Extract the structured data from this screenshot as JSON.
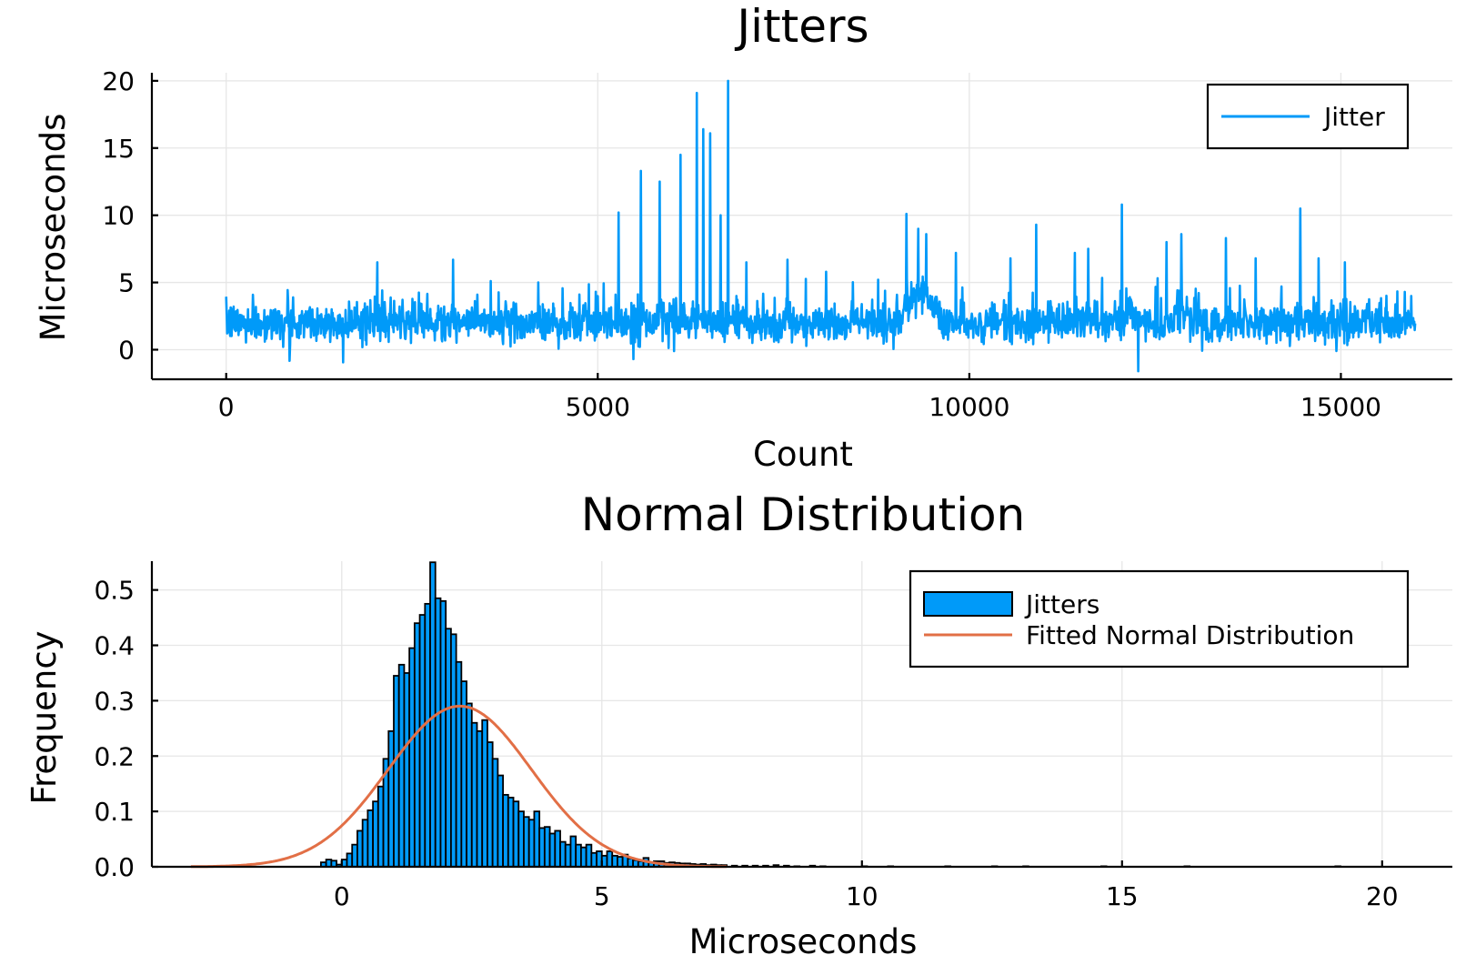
{
  "chart_data": [
    {
      "type": "line",
      "title": "Jitters",
      "xlabel": "Count",
      "ylabel": "Microseconds",
      "xlim": [
        -1000,
        16500
      ],
      "ylim": [
        -2.2,
        20.6
      ],
      "xticks": [
        0,
        5000,
        10000,
        15000
      ],
      "yticks": [
        0,
        5,
        10,
        15,
        20
      ],
      "grid": true,
      "legend_position": "top-right",
      "series": [
        {
          "name": "Jitter",
          "color": "#009af9",
          "n_points": 16000,
          "baseline_mean": 2.0,
          "min": -1.6,
          "max": 20.0,
          "spikes": [
            {
              "x": 2030,
              "y": 6.5
            },
            {
              "x": 3050,
              "y": 6.7
            },
            {
              "x": 4200,
              "y": 5.0
            },
            {
              "x": 5280,
              "y": 10.2
            },
            {
              "x": 5580,
              "y": 13.3
            },
            {
              "x": 5830,
              "y": 12.5
            },
            {
              "x": 6110,
              "y": 14.5
            },
            {
              "x": 6330,
              "y": 19.1
            },
            {
              "x": 6420,
              "y": 16.4
            },
            {
              "x": 6510,
              "y": 16.1
            },
            {
              "x": 6650,
              "y": 10.0
            },
            {
              "x": 6750,
              "y": 20.0
            },
            {
              "x": 7000,
              "y": 6.5
            },
            {
              "x": 7550,
              "y": 6.7
            },
            {
              "x": 8070,
              "y": 5.8
            },
            {
              "x": 8770,
              "y": 5.2
            },
            {
              "x": 9150,
              "y": 10.1
            },
            {
              "x": 9310,
              "y": 9.0
            },
            {
              "x": 9420,
              "y": 8.6
            },
            {
              "x": 9820,
              "y": 7.2
            },
            {
              "x": 10550,
              "y": 6.8
            },
            {
              "x": 10900,
              "y": 9.3
            },
            {
              "x": 11420,
              "y": 7.2
            },
            {
              "x": 11600,
              "y": 7.5
            },
            {
              "x": 12050,
              "y": 10.8
            },
            {
              "x": 12270,
              "y": -1.6
            },
            {
              "x": 12650,
              "y": 8.0
            },
            {
              "x": 12850,
              "y": 8.6
            },
            {
              "x": 13450,
              "y": 8.3
            },
            {
              "x": 13850,
              "y": 6.8
            },
            {
              "x": 14450,
              "y": 10.5
            },
            {
              "x": 14700,
              "y": 6.8
            },
            {
              "x": 15050,
              "y": 6.5
            }
          ],
          "elevated_regions": [
            {
              "from": 9000,
              "to": 9700,
              "level": 4.5
            },
            {
              "from": 12000,
              "to": 12300,
              "level": 3.0
            },
            {
              "from": 12700,
              "to": 13000,
              "level": 3.0
            }
          ]
        }
      ]
    },
    {
      "type": "bar",
      "subtype": "histogram",
      "title": "Normal Distribution",
      "xlabel": "Microseconds",
      "ylabel": "Frequency",
      "xlim": [
        -3.65,
        21.35
      ],
      "ylim": [
        0,
        0.552
      ],
      "xticks": [
        0,
        5,
        10,
        15,
        20
      ],
      "yticks": [
        0.0,
        0.1,
        0.2,
        0.3,
        0.4,
        0.5
      ],
      "ytick_labels": [
        "0.0",
        "0.1",
        "0.2",
        "0.3",
        "0.4",
        "0.5"
      ],
      "grid": true,
      "legend_position": "top-right",
      "bin_width": 0.1,
      "series": [
        {
          "name": "Jitters",
          "color": "#009af9",
          "bins": [
            [
              -0.4,
              0.008
            ],
            [
              -0.3,
              0.013
            ],
            [
              -0.2,
              0.011
            ],
            [
              -0.1,
              0.004
            ],
            [
              0.0,
              0.013
            ],
            [
              0.1,
              0.024
            ],
            [
              0.2,
              0.04
            ],
            [
              0.3,
              0.065
            ],
            [
              0.4,
              0.085
            ],
            [
              0.5,
              0.102
            ],
            [
              0.6,
              0.118
            ],
            [
              0.7,
              0.145
            ],
            [
              0.8,
              0.195
            ],
            [
              0.9,
              0.245
            ],
            [
              1.0,
              0.345
            ],
            [
              1.1,
              0.365
            ],
            [
              1.2,
              0.35
            ],
            [
              1.3,
              0.395
            ],
            [
              1.4,
              0.44
            ],
            [
              1.5,
              0.455
            ],
            [
              1.6,
              0.475
            ],
            [
              1.7,
              0.55
            ],
            [
              1.8,
              0.485
            ],
            [
              1.9,
              0.48
            ],
            [
              2.0,
              0.43
            ],
            [
              2.1,
              0.42
            ],
            [
              2.2,
              0.37
            ],
            [
              2.3,
              0.335
            ],
            [
              2.4,
              0.295
            ],
            [
              2.5,
              0.26
            ],
            [
              2.6,
              0.245
            ],
            [
              2.7,
              0.265
            ],
            [
              2.8,
              0.225
            ],
            [
              2.9,
              0.195
            ],
            [
              3.0,
              0.165
            ],
            [
              3.1,
              0.13
            ],
            [
              3.2,
              0.125
            ],
            [
              3.3,
              0.118
            ],
            [
              3.4,
              0.1
            ],
            [
              3.5,
              0.09
            ],
            [
              3.6,
              0.085
            ],
            [
              3.7,
              0.1
            ],
            [
              3.8,
              0.07
            ],
            [
              3.9,
              0.072
            ],
            [
              4.0,
              0.06
            ],
            [
              4.1,
              0.065
            ],
            [
              4.2,
              0.045
            ],
            [
              4.3,
              0.04
            ],
            [
              4.4,
              0.055
            ],
            [
              4.5,
              0.04
            ],
            [
              4.6,
              0.035
            ],
            [
              4.7,
              0.04
            ],
            [
              4.8,
              0.025
            ],
            [
              4.9,
              0.028
            ],
            [
              5.0,
              0.02
            ],
            [
              5.1,
              0.028
            ],
            [
              5.2,
              0.02
            ],
            [
              5.3,
              0.018
            ],
            [
              5.4,
              0.022
            ],
            [
              5.5,
              0.015
            ],
            [
              5.6,
              0.012
            ],
            [
              5.7,
              0.01
            ],
            [
              5.8,
              0.016
            ],
            [
              5.9,
              0.008
            ],
            [
              6.0,
              0.01
            ],
            [
              6.1,
              0.01
            ],
            [
              6.2,
              0.007
            ],
            [
              6.3,
              0.008
            ],
            [
              6.4,
              0.007
            ],
            [
              6.5,
              0.006
            ],
            [
              6.6,
              0.006
            ],
            [
              6.7,
              0.005
            ],
            [
              6.8,
              0.004
            ],
            [
              6.9,
              0.005
            ],
            [
              7.0,
              0.003
            ],
            [
              7.1,
              0.004
            ],
            [
              7.2,
              0.003
            ],
            [
              7.3,
              0.003
            ],
            [
              7.5,
              0.002
            ],
            [
              7.7,
              0.002
            ],
            [
              7.9,
              0.002
            ],
            [
              8.1,
              0.002
            ],
            [
              8.3,
              0.003
            ],
            [
              8.5,
              0.002
            ],
            [
              8.7,
              0.001
            ],
            [
              9.0,
              0.002
            ],
            [
              9.2,
              0.001
            ],
            [
              10.0,
              0.001
            ],
            [
              10.5,
              0.001
            ],
            [
              11.6,
              0.001
            ],
            [
              12.5,
              0.001
            ],
            [
              13.1,
              0.001
            ],
            [
              14.6,
              0.001
            ],
            [
              16.2,
              0.001
            ],
            [
              19.1,
              0.001
            ]
          ]
        },
        {
          "name": "Fitted Normal Distribution",
          "type": "line",
          "color": "#e26f46",
          "distribution": "normal",
          "mean": 2.27,
          "std": 1.375,
          "x_range": [
            -2.9,
            7.4
          ]
        }
      ]
    }
  ]
}
